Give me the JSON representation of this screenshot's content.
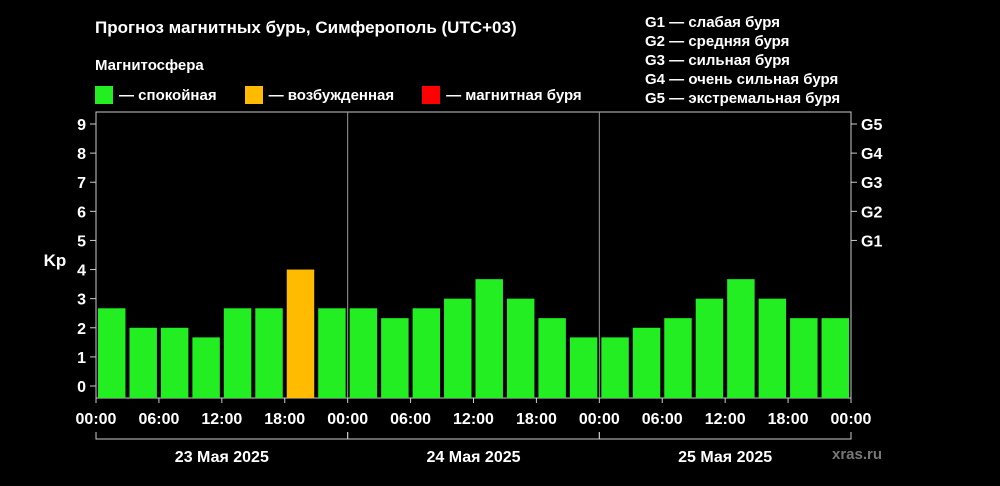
{
  "title": "Прогноз магнитных бурь, Симферополь (UTC+03)",
  "subtitle": "Магнитосфера",
  "legend": [
    {
      "label": "— спокойная",
      "color": "#22ee22"
    },
    {
      "label": "— возбужденная",
      "color": "#ffbb00"
    },
    {
      "label": "— магнитная буря",
      "color": "#ff0000"
    }
  ],
  "g_levels": [
    "G1 — слабая буря",
    "G2 — средняя буря",
    "G3 — сильная буря",
    "G4 — очень сильная буря",
    "G5 — экстремальная буря"
  ],
  "watermark": "xras.ru",
  "chart_data": {
    "type": "bar",
    "ylabel": "Kp",
    "ylim": [
      0,
      9
    ],
    "yticks": [
      "0",
      "1",
      "2",
      "3",
      "4",
      "5",
      "6",
      "7",
      "8",
      "9"
    ],
    "right_ticks": [
      {
        "label": "G1",
        "value": 5
      },
      {
        "label": "G2",
        "value": 6
      },
      {
        "label": "G3",
        "value": 7
      },
      {
        "label": "G4",
        "value": 8
      },
      {
        "label": "G5",
        "value": 9
      }
    ],
    "xtick_labels": [
      "00:00",
      "06:00",
      "12:00",
      "18:00",
      "00:00",
      "06:00",
      "12:00",
      "18:00",
      "00:00",
      "06:00",
      "12:00",
      "18:00",
      "00:00"
    ],
    "days": [
      "23 Мая 2025",
      "24 Мая 2025",
      "25 Мая 2025"
    ],
    "values": [
      2.67,
      2.0,
      2.0,
      1.67,
      2.67,
      2.67,
      4.0,
      2.67,
      2.67,
      2.33,
      2.67,
      3.0,
      3.67,
      3.0,
      2.33,
      1.67,
      1.67,
      2.0,
      2.33,
      3.0,
      3.67,
      3.0,
      2.33,
      2.33
    ],
    "colors": {
      "quiet": "#22ee22",
      "active": "#ffbb00",
      "storm": "#ff0000"
    },
    "grid": false
  }
}
